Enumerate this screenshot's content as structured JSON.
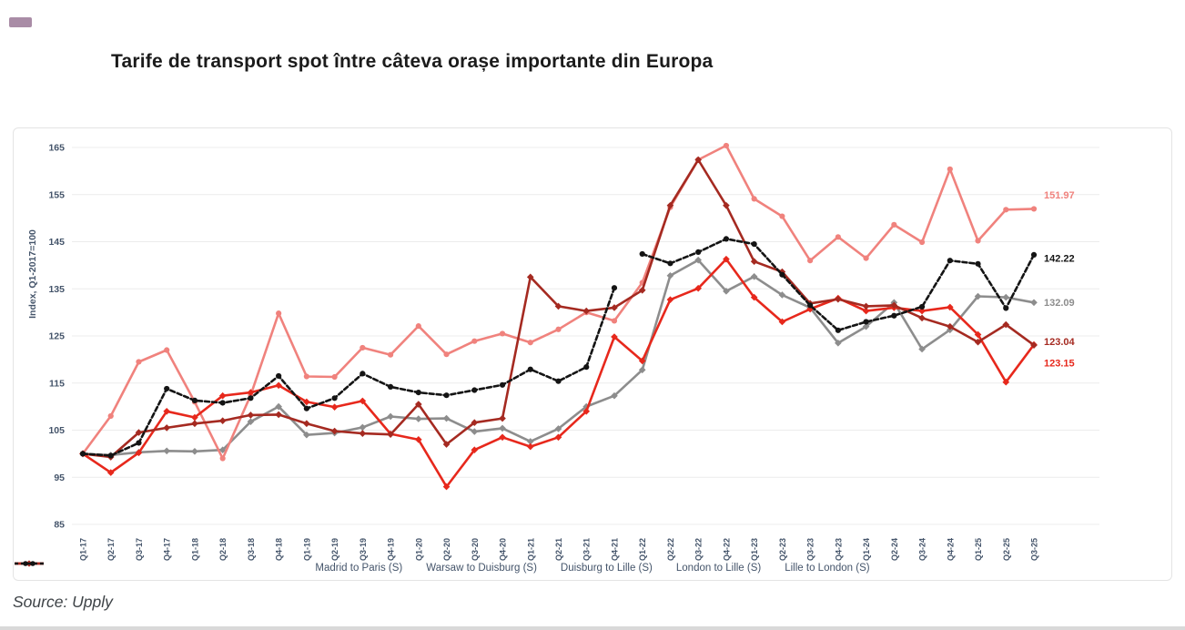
{
  "header": {
    "title": "Tarife de transport spot între câteva orașe importante din Europa"
  },
  "page": {
    "source_note": "Source: Upply"
  },
  "decorations": {
    "accent_color": "#A98CA6"
  },
  "chart_data": {
    "type": "line",
    "title": "Tarife de transport spot între câteva orașe importante din Europa",
    "xlabel": "",
    "ylabel": "Index, Q1-2017=100",
    "ylim": [
      85,
      165
    ],
    "y_ticks": [
      85,
      95,
      105,
      115,
      125,
      135,
      145,
      155,
      165
    ],
    "grid": true,
    "legend_position": "bottom",
    "x_tick_rotation": 90,
    "axis_text_color": "#44546A",
    "categories": [
      "Q1-17",
      "Q2-17",
      "Q3-17",
      "Q4-17",
      "Q1-18",
      "Q2-18",
      "Q3-18",
      "Q4-18",
      "Q1-19",
      "Q2-19",
      "Q3-19",
      "Q4-19",
      "Q1-20",
      "Q2-20",
      "Q3-20",
      "Q4-20",
      "Q1-21",
      "Q2-21",
      "Q3-21",
      "Q4-21",
      "Q1-22",
      "Q2-22",
      "Q3-22",
      "Q4-22",
      "Q1-23",
      "Q2-23",
      "Q3-23",
      "Q4-23",
      "Q1-24",
      "Q2-24",
      "Q3-24",
      "Q4-24",
      "Q1-25",
      "Q2-25",
      "Q3-25"
    ],
    "series": [
      {
        "name": "Madrid to Paris (S)",
        "color": "#8D8D8D",
        "marker": "diamond",
        "dash": null,
        "end_label": "132.09",
        "values": [
          100,
          99.7,
          100.3,
          100.6,
          100.5,
          100.8,
          106.8,
          110,
          104,
          104.4,
          105.6,
          107.9,
          107.4,
          107.5,
          104.7,
          105.4,
          102.6,
          105.3,
          110,
          112.3,
          117.8,
          137.8,
          141.1,
          134.5,
          137.6,
          133.7,
          131,
          123.5,
          127,
          132.1,
          122.2,
          126.3,
          133.4,
          133.2,
          132.09
        ]
      },
      {
        "name": "Warsaw to Duisburg (S)",
        "color": "#F0827D",
        "marker": "circle",
        "dash": null,
        "end_label": "151.97",
        "values": [
          100,
          108,
          119.5,
          122,
          111,
          99,
          112.4,
          129.8,
          116.4,
          116.3,
          122.5,
          121,
          127.1,
          121.1,
          123.9,
          125.5,
          123.6,
          126.4,
          130,
          128.2,
          136.3,
          152.3,
          162.4,
          165.4,
          154.1,
          150.4,
          141,
          146,
          141.5,
          148.6,
          144.9,
          160.4,
          145.2,
          151.8,
          151.97
        ]
      },
      {
        "name": "Duisburg to Lille (S)",
        "color": "#E7281C",
        "marker": "diamond",
        "dash": null,
        "end_label": "123.15",
        "values": [
          100,
          96,
          100.2,
          109,
          107.7,
          112.3,
          113,
          114.5,
          111,
          109.9,
          111.2,
          104.2,
          103,
          93,
          100.8,
          103.5,
          101.5,
          103.5,
          109,
          124.8,
          119.7,
          132.7,
          135.1,
          141.3,
          133.2,
          128,
          130.7,
          133,
          130.3,
          131,
          130.3,
          131.1,
          125.3,
          115.2,
          123.15
        ]
      },
      {
        "name": "London to Lille (S)",
        "color": "#A52A21",
        "marker": "diamond",
        "dash": null,
        "end_label": "123.04",
        "values": [
          100,
          99.3,
          104.5,
          105.5,
          106.4,
          107,
          108.2,
          108.3,
          106.4,
          104.8,
          104.3,
          104.1,
          110.5,
          102,
          106.6,
          107.5,
          137.5,
          131.3,
          130.3,
          131,
          134.7,
          152.7,
          162.4,
          152.7,
          140.8,
          138.6,
          131.9,
          132.8,
          131.3,
          131.5,
          128.8,
          127,
          123.7,
          127.4,
          123.04
        ]
      },
      {
        "name": "Lille to London (S)",
        "color": "#141414",
        "marker": "circle",
        "dash": "5,3",
        "gap_after_index": 19,
        "end_label": "142.22",
        "values": [
          100,
          99.6,
          102.3,
          113.8,
          111.3,
          110.8,
          111.8,
          116.5,
          109.6,
          111.8,
          117,
          114.2,
          113,
          112.4,
          113.5,
          114.6,
          117.9,
          115.4,
          118.4,
          135.2,
          142.4,
          140.4,
          142.8,
          145.6,
          144.5,
          138,
          131.5,
          126.2,
          128,
          129.3,
          131.2,
          141,
          140.3,
          130.9,
          142.22
        ]
      }
    ]
  }
}
